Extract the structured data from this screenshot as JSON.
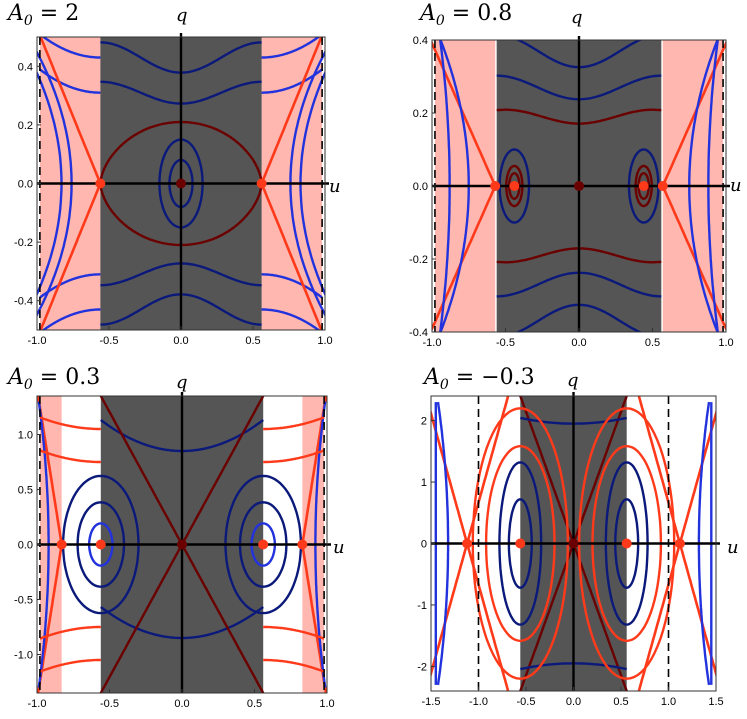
{
  "chart_data": [
    {
      "type": "phase-portrait",
      "title": "A_0 = 2",
      "title_parts": {
        "symbol": "A",
        "sub": "0",
        "value": " = 2"
      },
      "xlabel": "u",
      "ylabel": "q",
      "xlim": [
        -1.0,
        1.0
      ],
      "ylim": [
        -0.5,
        0.5
      ],
      "xticks": [
        -1.0,
        -0.5,
        0.0,
        0.5,
        1.0
      ],
      "xtick_labels": [
        "-1.0",
        "-0.5",
        "0.0",
        "0.5",
        "1.0"
      ],
      "yticks": [
        -0.4,
        -0.2,
        0.0,
        0.2,
        0.4
      ],
      "ytick_labels": [
        "-0.4",
        "-0.2",
        "0.0",
        "0.2",
        "0.4"
      ],
      "gray_band": [
        -0.56,
        0.56
      ],
      "pink_regions": [
        [
          -0.98,
          -0.56
        ],
        [
          0.56,
          0.98
        ]
      ],
      "dashed_lines": [
        -0.98,
        0.98
      ],
      "fixed_points": [
        {
          "u": -0.56,
          "q": 0,
          "type": "saddle",
          "color": "#ff3a1a"
        },
        {
          "u": 0.0,
          "q": 0,
          "type": "center",
          "color": "#6b0000"
        },
        {
          "u": 0.56,
          "q": 0,
          "type": "saddle",
          "color": "#ff3a1a"
        }
      ],
      "colors": {
        "blue": "#2233dd",
        "red": "#ff3a1a",
        "dark_red": "#6b0000",
        "navy": "#0b1a7a",
        "gray": "#555555",
        "pink": "#ffb7b0"
      }
    },
    {
      "type": "phase-portrait",
      "title": "A_0 = 0.8",
      "title_parts": {
        "symbol": "A",
        "sub": "0",
        "value": " = 0.8"
      },
      "xlabel": "u",
      "ylabel": "q",
      "xlim": [
        -1.0,
        1.0
      ],
      "ylim": [
        -0.4,
        0.4
      ],
      "xticks": [
        -1.0,
        -0.5,
        0.0,
        0.5,
        1.0
      ],
      "xtick_labels": [
        "-1.0",
        "-0.5",
        "0.0",
        "0.5",
        "1.0"
      ],
      "yticks": [
        -0.4,
        -0.2,
        0.0,
        0.2,
        0.4
      ],
      "ytick_labels": [
        "-0.4",
        "-0.2",
        "0.0",
        "0.2",
        "0.4"
      ],
      "gray_band": [
        -0.56,
        0.56
      ],
      "pink_regions": [
        [
          -0.98,
          -0.57
        ],
        [
          0.57,
          0.98
        ]
      ],
      "dashed_lines": [
        -0.98,
        0.98
      ],
      "fixed_points": [
        {
          "u": -0.57,
          "q": 0,
          "type": "saddle",
          "color": "#ff3a1a"
        },
        {
          "u": -0.44,
          "q": 0,
          "type": "center",
          "color": "#ff3a1a"
        },
        {
          "u": 0.0,
          "q": 0,
          "type": "saddle",
          "color": "#6b0000"
        },
        {
          "u": 0.44,
          "q": 0,
          "type": "center",
          "color": "#ff3a1a"
        },
        {
          "u": 0.57,
          "q": 0,
          "type": "saddle",
          "color": "#ff3a1a"
        }
      ],
      "colors": {
        "blue": "#2233dd",
        "red": "#ff3a1a",
        "dark_red": "#6b0000",
        "navy": "#0b1a7a",
        "gray": "#555555",
        "pink": "#ffb7b0"
      }
    },
    {
      "type": "phase-portrait",
      "title": "A_0 = 0.3",
      "title_parts": {
        "symbol": "A",
        "sub": "0",
        "value": " = 0.3"
      },
      "xlabel": "u",
      "ylabel": "q",
      "xlim": [
        -1.0,
        1.0
      ],
      "ylim": [
        -1.35,
        1.35
      ],
      "xticks": [
        -1.0,
        -0.5,
        0.0,
        0.5,
        1.0
      ],
      "xtick_labels": [
        "-1.0",
        "-0.5",
        "0.0",
        "0.5",
        "1.0"
      ],
      "yticks": [
        -1.0,
        -0.5,
        0.0,
        0.5,
        1.0
      ],
      "ytick_labels": [
        "-1.0",
        "-0.5",
        "0.0",
        "0.5",
        "1.0"
      ],
      "gray_band": [
        -0.56,
        0.56
      ],
      "pink_regions": [
        [
          -0.98,
          -0.83
        ],
        [
          0.83,
          0.98
        ]
      ],
      "dashed_lines": [
        -0.98,
        0.98
      ],
      "fixed_points": [
        {
          "u": -0.83,
          "q": 0,
          "type": "saddle",
          "color": "#ff3a1a"
        },
        {
          "u": -0.56,
          "q": 0,
          "type": "center",
          "color": "#ff3a1a"
        },
        {
          "u": 0.0,
          "q": 0,
          "type": "saddle",
          "color": "#6b0000"
        },
        {
          "u": 0.56,
          "q": 0,
          "type": "center",
          "color": "#ff3a1a"
        },
        {
          "u": 0.83,
          "q": 0,
          "type": "saddle",
          "color": "#ff3a1a"
        }
      ],
      "colors": {
        "blue": "#2233dd",
        "red": "#ff3a1a",
        "dark_red": "#6b0000",
        "navy": "#0b1a7a",
        "gray": "#555555",
        "pink": "#ffb7b0"
      }
    },
    {
      "type": "phase-portrait",
      "title": "A_0 = -0.3",
      "title_parts": {
        "symbol": "A",
        "sub": "0",
        "value": " = −0.3"
      },
      "xlabel": "u",
      "ylabel": "q",
      "xlim": [
        -1.5,
        1.5
      ],
      "ylim": [
        -2.4,
        2.4
      ],
      "xticks": [
        -1.5,
        -1.0,
        -0.5,
        0.0,
        0.5,
        1.0,
        1.5
      ],
      "xtick_labels": [
        "-1.5",
        "-1.0",
        "-0.5",
        "0.0",
        "0.5",
        "1.0",
        "1.5"
      ],
      "yticks": [
        -2,
        -1,
        0,
        1,
        2
      ],
      "ytick_labels": [
        "-2",
        "-1",
        "0",
        "1",
        "2"
      ],
      "gray_band": [
        -0.56,
        0.56
      ],
      "pink_regions": [],
      "dashed_lines": [
        -1.0,
        1.0
      ],
      "fixed_points": [
        {
          "u": -1.12,
          "q": 0,
          "type": "saddle",
          "color": "#ff3a1a"
        },
        {
          "u": -0.56,
          "q": 0,
          "type": "center",
          "color": "#ff3a1a"
        },
        {
          "u": 0.0,
          "q": 0,
          "type": "saddle",
          "color": "#6b0000"
        },
        {
          "u": 0.56,
          "q": 0,
          "type": "center",
          "color": "#ff3a1a"
        },
        {
          "u": 1.12,
          "q": 0,
          "type": "saddle",
          "color": "#ff3a1a"
        }
      ],
      "colors": {
        "blue": "#2233dd",
        "red": "#ff3a1a",
        "dark_red": "#6b0000",
        "navy": "#0b1a7a",
        "gray": "#555555",
        "pink": "#ffb7b0"
      }
    }
  ]
}
